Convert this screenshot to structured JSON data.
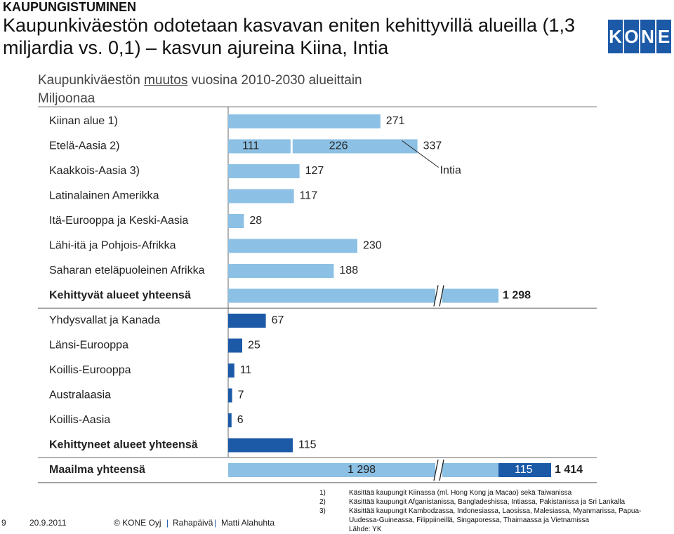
{
  "header": {
    "kicker": "KAUPUNGISTUMINEN",
    "headline": "Kaupunkiväestön odotetaan kasvavan eniten kehittyvillä alueilla (1,3 miljardia vs. 0,1) – kasvun ajureina Kiina, Intia"
  },
  "logo": {
    "letters": [
      "K",
      "O",
      "N",
      "E"
    ],
    "color": "#1c5aa8"
  },
  "chart_title": {
    "before": "Kaupunkiväestön ",
    "underlined": "muutos",
    "after": " vuosina 2010-2030 alueittain"
  },
  "chart_unit": "Miljoonaa",
  "chart_data": {
    "type": "bar",
    "orientation": "horizontal",
    "unit": "Miljoonaa",
    "axis_break": true,
    "colors": {
      "developing": "#8cc0e4",
      "developed": "#1c5aa8",
      "break_fill": "#ffffff"
    },
    "rows": [
      {
        "label": "Kiinan alue 1)",
        "value": 271,
        "value_label": "271",
        "group": "developing",
        "bold": false
      },
      {
        "label": "Etelä-Aasia 2)",
        "value": 337,
        "value_label": "337",
        "group": "developing",
        "bold": false,
        "segments": [
          {
            "value": 111,
            "label": "111"
          },
          {
            "value": 226,
            "label": "226"
          }
        ]
      },
      {
        "label": "Kaakkois-Aasia 3)",
        "value": 127,
        "value_label": "127",
        "group": "developing",
        "bold": false
      },
      {
        "label": "Latinalainen Amerikka",
        "value": 117,
        "value_label": "117",
        "group": "developing",
        "bold": false
      },
      {
        "label": "Itä-Eurooppa ja Keski-Aasia",
        "value": 28,
        "value_label": "28",
        "group": "developing",
        "bold": false
      },
      {
        "label": "Lähi-itä ja Pohjois-Afrikka",
        "value": 230,
        "value_label": "230",
        "group": "developing",
        "bold": false
      },
      {
        "label": "Saharan eteläpuoleinen Afrikka",
        "value": 188,
        "value_label": "188",
        "group": "developing",
        "bold": false
      },
      {
        "label": "Kehittyvät alueet yhteensä",
        "value": 1298,
        "value_label": "1 298",
        "group": "developing",
        "bold": true,
        "broken": true
      },
      {
        "label": "Yhdysvallat ja Kanada",
        "value": 67,
        "value_label": "67",
        "group": "developed",
        "bold": false
      },
      {
        "label": "Länsi-Eurooppa",
        "value": 25,
        "value_label": "25",
        "group": "developed",
        "bold": false
      },
      {
        "label": "Koillis-Eurooppa",
        "value": 11,
        "value_label": "11",
        "group": "developed",
        "bold": false
      },
      {
        "label": "Australaasia",
        "value": 7,
        "value_label": "7",
        "group": "developed",
        "bold": false
      },
      {
        "label": "Koillis-Aasia",
        "value": 6,
        "value_label": "6",
        "group": "developed",
        "bold": false
      },
      {
        "label": "Kehittyneet alueet yhteensä",
        "value": 115,
        "value_label": "115",
        "group": "developed",
        "bold": true
      },
      {
        "label": "Maailma yhteensä",
        "value": 1414,
        "value_label": "1 414",
        "group": "world",
        "bold": true,
        "broken": true,
        "segments": [
          {
            "value": 1298,
            "label": "1 298",
            "group": "developing"
          },
          {
            "value": 115,
            "label": "115",
            "group": "developed"
          }
        ]
      }
    ],
    "annotation": {
      "text": "Intia",
      "row": "Etelä-Aasia 2)"
    }
  },
  "footnotes": [
    {
      "num": "1)",
      "text": "Käsittää kaupungit Kiinassa (ml. Hong Kong ja Macao) sekä Taiwanissa"
    },
    {
      "num": "2)",
      "text": "Käsittää kaupungit Afganistanissa, Bangladeshissa, Intiassa, Pakistanissa ja Sri Lankalla"
    },
    {
      "num": "3)",
      "text": "Käsittää kaupungit Kambodzassa, Indonesiassa, Laosissa, Malesiassa, Myanmarissa, Papua-Uudessa-Guineassa, Filippiineillä, Singaporessa, Thaimaassa ja Vietnamissa"
    },
    {
      "num": "",
      "text": "Lähde: YK"
    }
  ],
  "footer": {
    "page": "9",
    "date": "20.9.2011",
    "company": "© KONE Oyj",
    "event": "Rahapäivä",
    "author": "Matti Alahuhta"
  }
}
